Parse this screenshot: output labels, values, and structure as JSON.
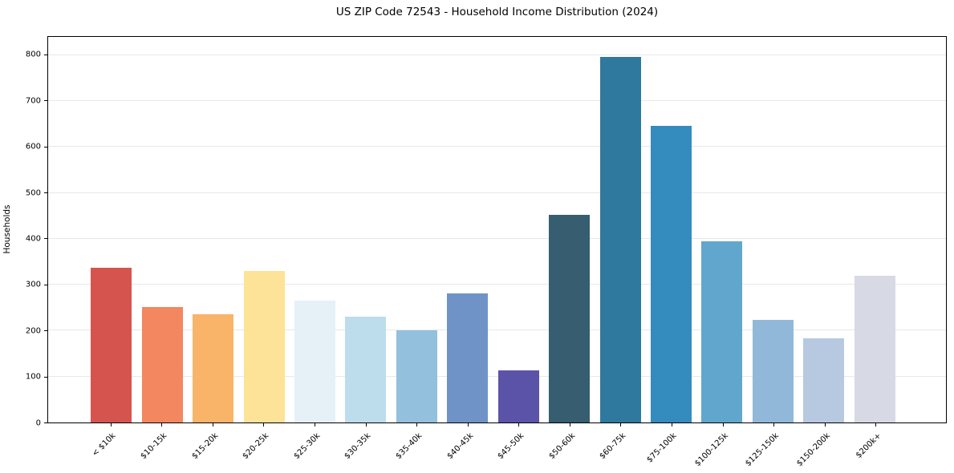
{
  "chart_data": {
    "type": "bar",
    "title": "US ZIP Code 72543 - Household Income Distribution (2024)",
    "xlabel": "",
    "ylabel": "Households",
    "categories": [
      "< $10k",
      "$10-15k",
      "$15-20k",
      "$20-25k",
      "$25-30k",
      "$30-35k",
      "$35-40k",
      "$40-45k",
      "$45-50k",
      "$50-60k",
      "$60-75k",
      "$75-100k",
      "$100-125k",
      "$125-150k",
      "$150-200k",
      "$200k+"
    ],
    "values": [
      337,
      251,
      235,
      330,
      265,
      230,
      200,
      282,
      113,
      453,
      797,
      647,
      394,
      223,
      184,
      320
    ],
    "bar_colors": [
      "#d6544e",
      "#f3875f",
      "#f9b469",
      "#fde398",
      "#e5f1f6",
      "#bddcec",
      "#93c0dd",
      "#6f93c6",
      "#5b53a8",
      "#365d70",
      "#30799e",
      "#348bbe",
      "#61a7cd",
      "#92b8d9",
      "#b7c9e0",
      "#d7d9e4"
    ],
    "ylim": [
      0,
      840
    ],
    "yticks": [
      0,
      100,
      200,
      300,
      400,
      500,
      600,
      700,
      800
    ],
    "grid": "horizontal-only",
    "legend": "none",
    "background_color": "#ffffff",
    "gridline_color": "#e8e8e8",
    "axis_color": "#000000"
  }
}
